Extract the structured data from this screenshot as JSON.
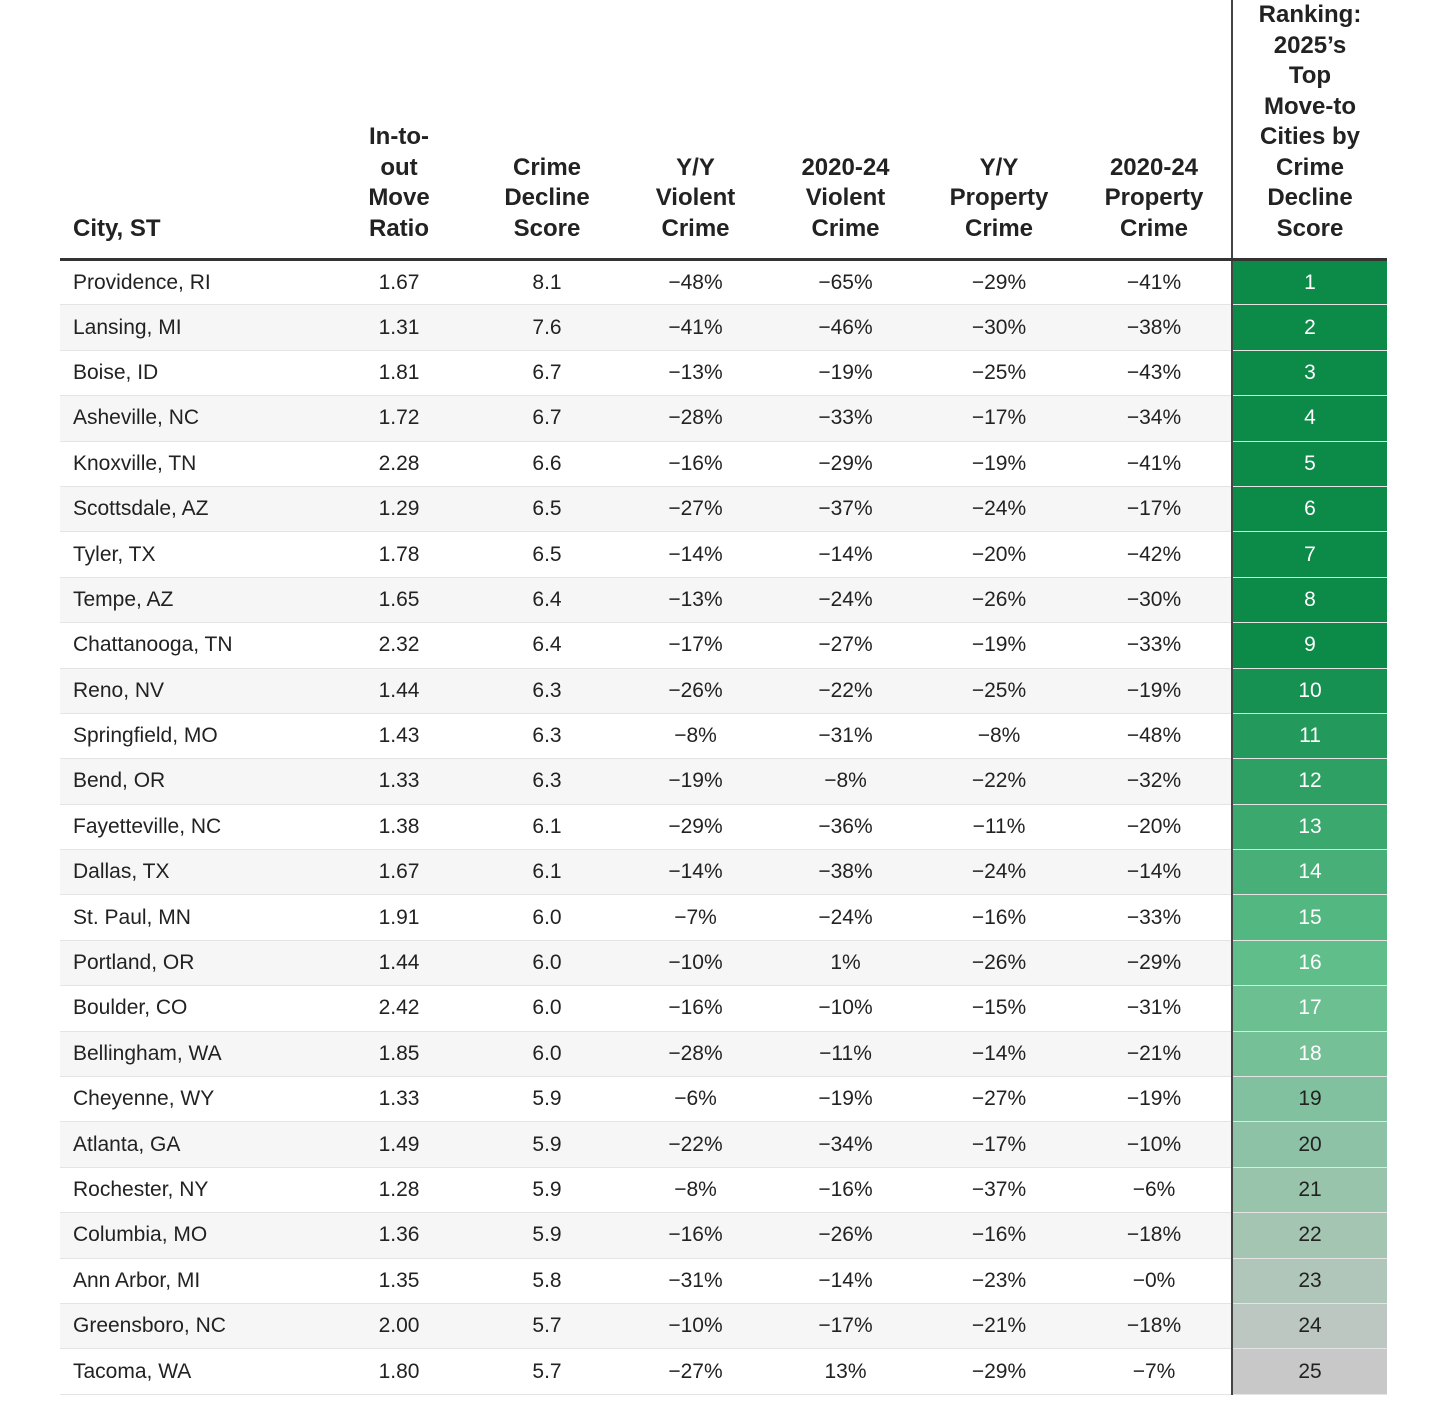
{
  "table": {
    "columns": [
      [
        "City, ST"
      ],
      [
        "In-to-",
        "out",
        "Move",
        "Ratio"
      ],
      [
        "Crime",
        "Decline",
        "Score"
      ],
      [
        "Y/Y",
        "Violent",
        "Crime"
      ],
      [
        "2020-24",
        "Violent",
        "Crime"
      ],
      [
        "Y/Y",
        "Property",
        "Crime"
      ],
      [
        "2020-24",
        "Property",
        "Crime"
      ],
      [
        "Ranking:",
        "2025’s",
        "Top",
        "Move-to",
        "Cities by",
        "Crime",
        "Decline",
        "Score"
      ]
    ],
    "rows": [
      [
        "Providence, RI",
        "1.67",
        "8.1",
        "−48%",
        "−65%",
        "−29%",
        "−41%",
        "1"
      ],
      [
        "Lansing, MI",
        "1.31",
        "7.6",
        "−41%",
        "−46%",
        "−30%",
        "−38%",
        "2"
      ],
      [
        "Boise, ID",
        "1.81",
        "6.7",
        "−13%",
        "−19%",
        "−25%",
        "−43%",
        "3"
      ],
      [
        "Asheville, NC",
        "1.72",
        "6.7",
        "−28%",
        "−33%",
        "−17%",
        "−34%",
        "4"
      ],
      [
        "Knoxville, TN",
        "2.28",
        "6.6",
        "−16%",
        "−29%",
        "−19%",
        "−41%",
        "5"
      ],
      [
        "Scottsdale, AZ",
        "1.29",
        "6.5",
        "−27%",
        "−37%",
        "−24%",
        "−17%",
        "6"
      ],
      [
        "Tyler, TX",
        "1.78",
        "6.5",
        "−14%",
        "−14%",
        "−20%",
        "−42%",
        "7"
      ],
      [
        "Tempe, AZ",
        "1.65",
        "6.4",
        "−13%",
        "−24%",
        "−26%",
        "−30%",
        "8"
      ],
      [
        "Chattanooga, TN",
        "2.32",
        "6.4",
        "−17%",
        "−27%",
        "−19%",
        "−33%",
        "9"
      ],
      [
        "Reno, NV",
        "1.44",
        "6.3",
        "−26%",
        "−22%",
        "−25%",
        "−19%",
        "10"
      ],
      [
        "Springfield, MO",
        "1.43",
        "6.3",
        "−8%",
        "−31%",
        "−8%",
        "−48%",
        "11"
      ],
      [
        "Bend, OR",
        "1.33",
        "6.3",
        "−19%",
        "−8%",
        "−22%",
        "−32%",
        "12"
      ],
      [
        "Fayetteville, NC",
        "1.38",
        "6.1",
        "−29%",
        "−36%",
        "−11%",
        "−20%",
        "13"
      ],
      [
        "Dallas, TX",
        "1.67",
        "6.1",
        "−14%",
        "−38%",
        "−24%",
        "−14%",
        "14"
      ],
      [
        "St. Paul, MN",
        "1.91",
        "6.0",
        "−7%",
        "−24%",
        "−16%",
        "−33%",
        "15"
      ],
      [
        "Portland, OR",
        "1.44",
        "6.0",
        "−10%",
        "1%",
        "−26%",
        "−29%",
        "16"
      ],
      [
        "Boulder, CO",
        "2.42",
        "6.0",
        "−16%",
        "−10%",
        "−15%",
        "−31%",
        "17"
      ],
      [
        "Bellingham, WA",
        "1.85",
        "6.0",
        "−28%",
        "−11%",
        "−14%",
        "−21%",
        "18"
      ],
      [
        "Cheyenne, WY",
        "1.33",
        "5.9",
        "−6%",
        "−19%",
        "−27%",
        "−19%",
        "19"
      ],
      [
        "Atlanta, GA",
        "1.49",
        "5.9",
        "−22%",
        "−34%",
        "−17%",
        "−10%",
        "20"
      ],
      [
        "Rochester, NY",
        "1.28",
        "5.9",
        "−8%",
        "−16%",
        "−37%",
        "−6%",
        "21"
      ],
      [
        "Columbia, MO",
        "1.36",
        "5.9",
        "−16%",
        "−26%",
        "−16%",
        "−18%",
        "22"
      ],
      [
        "Ann Arbor, MI",
        "1.35",
        "5.8",
        "−31%",
        "−14%",
        "−23%",
        "−0%",
        "23"
      ],
      [
        "Greensboro, NC",
        "2.00",
        "5.7",
        "−10%",
        "−17%",
        "−21%",
        "−18%",
        "24"
      ],
      [
        "Tacoma, WA",
        "1.80",
        "5.7",
        "−27%",
        "13%",
        "−29%",
        "−7%",
        "25"
      ]
    ]
  }
}
